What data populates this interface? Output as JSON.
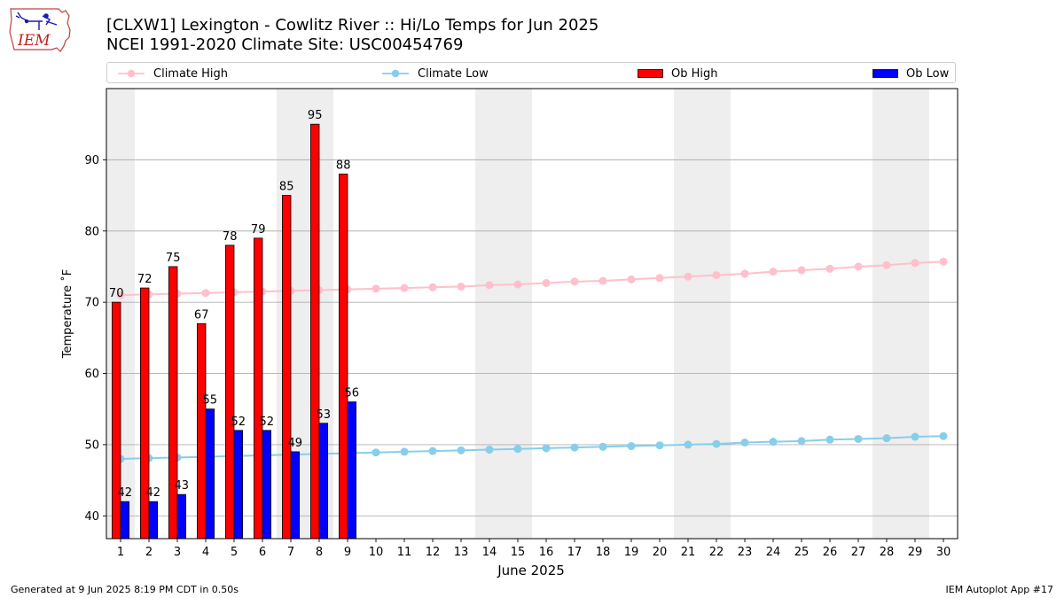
{
  "logo": {
    "text": "IEM"
  },
  "title": {
    "line1": "[CLXW1] Lexington - Cowlitz River :: Hi/Lo Temps for Jun 2025",
    "line2": "NCEI 1991-2020 Climate Site: USC00454769"
  },
  "legend": {
    "climate_high": "Climate High",
    "climate_low": "Climate Low",
    "ob_high": "Ob High",
    "ob_low": "Ob Low"
  },
  "colors": {
    "climate_high": "#ffc0cb",
    "climate_low": "#87ceeb",
    "ob_high": "#ff0000",
    "ob_low": "#0000ff",
    "weekend_band": "#eeeeee",
    "grid": "#b0b0b0"
  },
  "footer": {
    "left": "Generated at 9 Jun 2025 8:19 PM CDT in 0.50s",
    "right": "IEM Autoplot App #17"
  },
  "chart_data": {
    "type": "bar",
    "xlabel": "June 2025",
    "ylabel": "Temperature ˚F",
    "ylim": [
      36.8,
      100
    ],
    "yticks": [
      40,
      50,
      60,
      70,
      80,
      90
    ],
    "grid": true,
    "legend_position": "top",
    "days": [
      1,
      2,
      3,
      4,
      5,
      6,
      7,
      8,
      9,
      10,
      11,
      12,
      13,
      14,
      15,
      16,
      17,
      18,
      19,
      20,
      21,
      22,
      23,
      24,
      25,
      26,
      27,
      28,
      29,
      30
    ],
    "weekend_days": [
      1,
      7,
      8,
      14,
      15,
      21,
      22,
      28,
      29
    ],
    "ob_high": [
      70,
      72,
      75,
      67,
      78,
      79,
      85,
      95,
      88
    ],
    "ob_low": [
      42,
      42,
      43,
      55,
      52,
      52,
      49,
      53,
      56
    ],
    "climate_high": [
      71.0,
      71.1,
      71.2,
      71.3,
      71.4,
      71.5,
      71.6,
      71.7,
      71.8,
      71.9,
      72.0,
      72.1,
      72.2,
      72.4,
      72.5,
      72.7,
      72.9,
      73.0,
      73.2,
      73.4,
      73.6,
      73.8,
      74.0,
      74.3,
      74.5,
      74.7,
      75.0,
      75.2,
      75.5,
      75.7
    ],
    "climate_low": [
      48.0,
      48.1,
      48.2,
      48.3,
      48.4,
      48.5,
      48.6,
      48.7,
      48.8,
      48.9,
      49.0,
      49.1,
      49.2,
      49.3,
      49.4,
      49.5,
      49.6,
      49.7,
      49.8,
      49.9,
      50.0,
      50.1,
      50.3,
      50.4,
      50.5,
      50.7,
      50.8,
      50.9,
      51.1,
      51.2
    ]
  }
}
